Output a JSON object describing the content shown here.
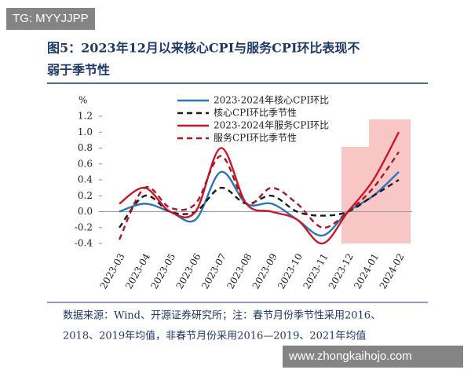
{
  "chart_data": {
    "type": "line",
    "title": [
      "图5：2023年12月以来核心CPI与服务CPI环比表现不",
      "弱于季节性"
    ],
    "y_label": "%",
    "categories": [
      "2023-03",
      "2023-04",
      "2023-05",
      "2023-06",
      "2023-07",
      "2023-08",
      "2023-09",
      "2023-10",
      "2023-11",
      "2023-12",
      "2024-01",
      "2024-02"
    ],
    "series": [
      {
        "name": "2023-2024年核心CPI环比",
        "color": "#2e75b6",
        "dash": false,
        "values": [
          0.0,
          0.1,
          0.0,
          -0.1,
          0.5,
          0.1,
          0.1,
          -0.1,
          -0.3,
          0.0,
          0.2,
          0.5
        ]
      },
      {
        "name": "核心CPI环比季节性",
        "color": "#1a1a1a",
        "dash": true,
        "values": [
          -0.2,
          0.2,
          0.0,
          0.0,
          0.3,
          0.1,
          0.2,
          0.0,
          -0.05,
          0.0,
          0.2,
          0.4
        ]
      },
      {
        "name": "2023-2024年服务CPI环比",
        "color": "#c8172b",
        "dash": false,
        "values": [
          0.1,
          0.3,
          0.0,
          0.0,
          0.8,
          0.1,
          0.0,
          -0.1,
          -0.4,
          0.0,
          0.4,
          1.0
        ]
      },
      {
        "name": "服务CPI环比季节性",
        "color": "#a3192c",
        "dash": true,
        "values": [
          -0.35,
          0.3,
          0.05,
          0.1,
          0.7,
          0.1,
          0.3,
          0.1,
          -0.2,
          0.0,
          0.3,
          0.75
        ]
      }
    ],
    "ylim": [
      -0.4,
      1.2
    ],
    "yticks": [
      {
        "value": 1.2,
        "label": "1.2"
      },
      {
        "value": 1,
        "label": "1.0"
      },
      {
        "value": 0.8,
        "label": "0.8"
      },
      {
        "value": 0.6,
        "label": "0.6"
      },
      {
        "value": 0.4,
        "label": "0.4"
      },
      {
        "value": 0.2,
        "label": "0.2"
      },
      {
        "value": 0,
        "label": "0.0"
      },
      {
        "value": -0.2,
        "label": "-0.2"
      },
      {
        "value": -0.4,
        "label": "-0.4"
      }
    ],
    "note": [
      "数据来源：Wind、开源证券研究所；注：春节月份季节性采用2016、",
      "2018、2019年均值，非春节月份采用2016—2019、2021年均值"
    ]
  },
  "watermarks": [
    "TG: MYYJJPP",
    "www.zhongkaihojo.com"
  ]
}
